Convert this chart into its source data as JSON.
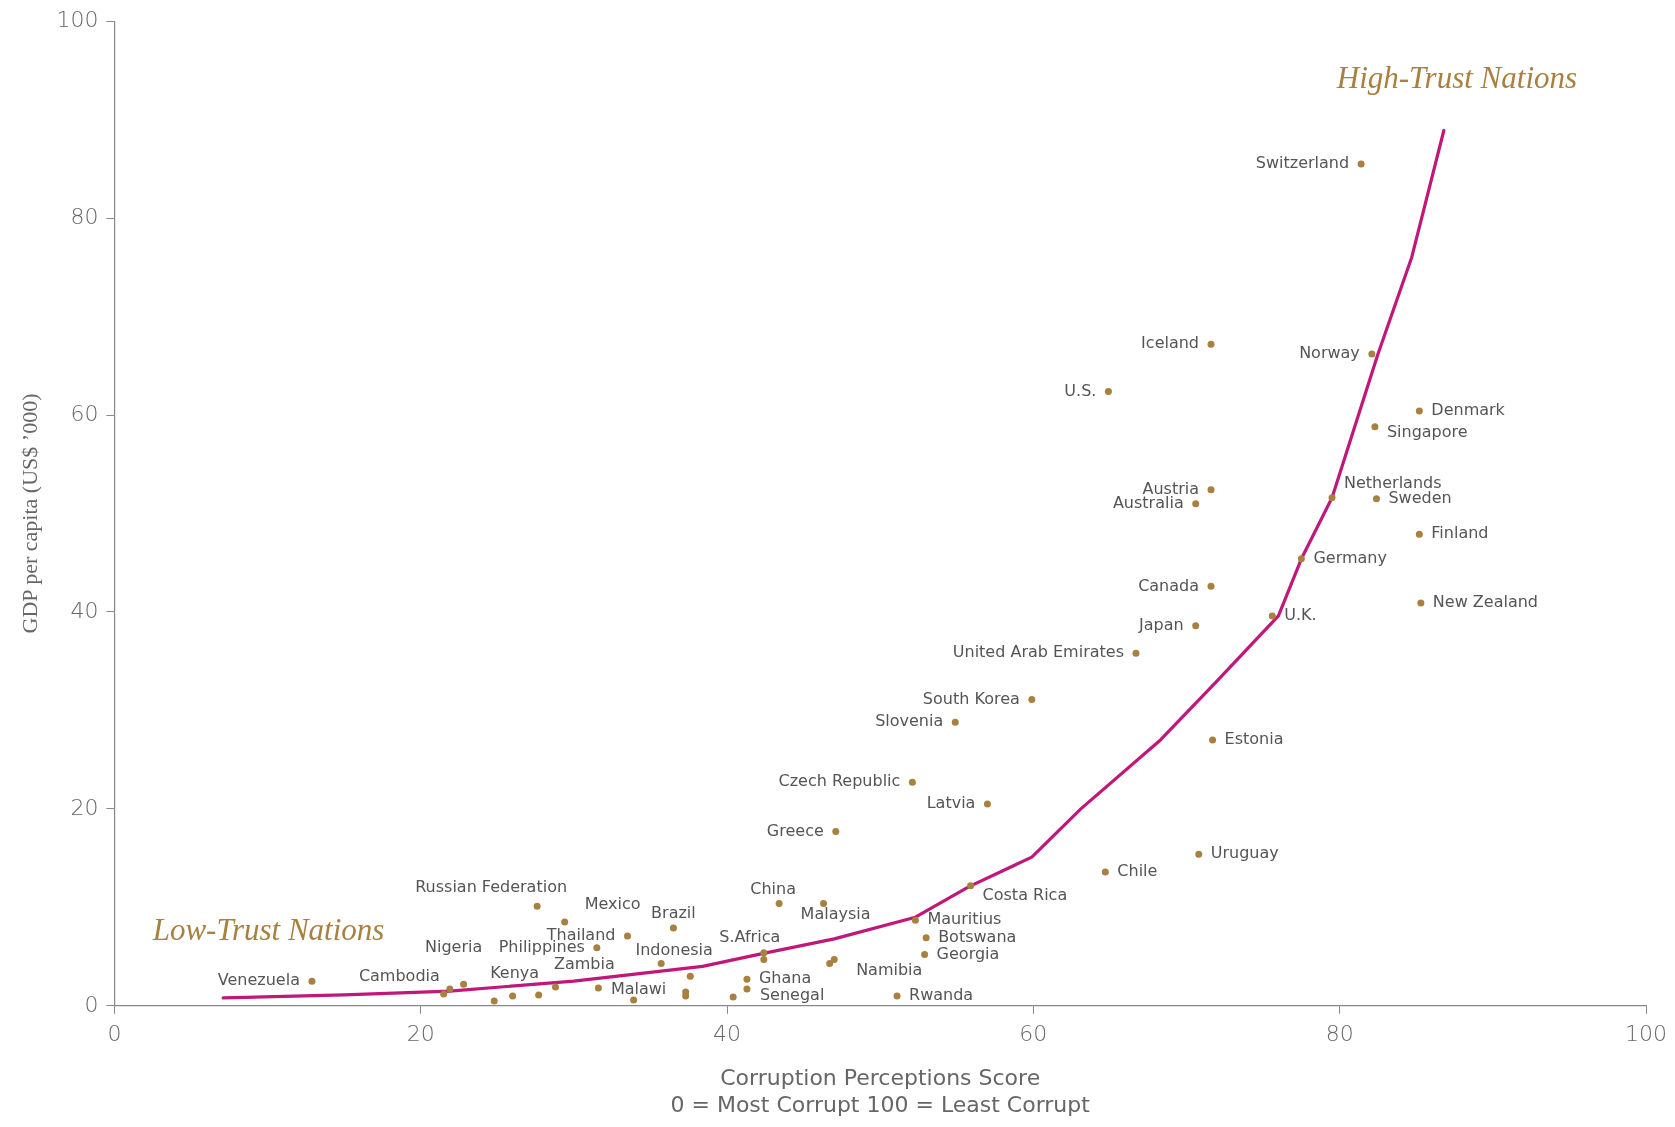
{
  "chart_data": {
    "type": "scatter",
    "xlabel": "Corruption Perceptions Score\n0 = Most Corrupt 100 = Least Corrupt",
    "ylabel": "GDP per capita (US$ ’000)",
    "xlim": [
      0,
      100
    ],
    "ylim": [
      0,
      100
    ],
    "xticks": [
      0,
      20,
      40,
      60,
      80,
      100
    ],
    "yticks": [
      0,
      20,
      40,
      60,
      80,
      100
    ],
    "marker": "circle",
    "series": [
      {
        "color": "#a8803f",
        "x": [
          81.4,
          71.6,
          82.1,
          64.9,
          85.2,
          82.3,
          71.6,
          70.6,
          79.5,
          82.4,
          85.2,
          77.5,
          71.6,
          85.3,
          75.6,
          70.6,
          66.7,
          59.9,
          54.9,
          71.7,
          52.1,
          57.0,
          47.1,
          70.8,
          64.7,
          55.9,
          43.4,
          46.3,
          27.6,
          29.4,
          52.3,
          36.5,
          33.5,
          53.0,
          31.5,
          42.4,
          52.9,
          47.0,
          35.7,
          31.6,
          41.3,
          41.3,
          51.1,
          33.9,
          12.9,
          21.9,
          22.8,
          26.0,
          46.7,
          42.4,
          37.6,
          37.3,
          37.3,
          40.4,
          21.5,
          24.8,
          27.7,
          28.8
        ],
        "values": [
          85.5,
          67.2,
          66.2,
          62.4,
          60.4,
          58.8,
          52.4,
          51.0,
          51.6,
          51.5,
          47.9,
          45.4,
          42.6,
          40.9,
          39.6,
          38.6,
          35.8,
          31.1,
          28.8,
          27.0,
          22.7,
          20.5,
          17.7,
          15.4,
          13.6,
          12.2,
          10.4,
          10.4,
          10.1,
          8.5,
          8.7,
          7.9,
          7.1,
          6.9,
          5.9,
          5.4,
          5.2,
          4.7,
          4.3,
          1.8,
          2.7,
          1.7,
          1.0,
          0.6,
          2.5,
          1.7,
          2.2,
          1.0,
          4.3,
          4.7,
          3.0,
          1.4,
          1.0,
          0.9,
          1.2,
          0.5,
          1.1,
          1.9
        ]
      },
      {
        "type": "line",
        "color": "#c0187a",
        "marker": "none",
        "line_style": "solid",
        "x": [
          7.1,
          15,
          21.9,
          30,
          38.4,
          42.3,
          47,
          52.3,
          55.8,
          59.9,
          63.1,
          68.3,
          72,
          76,
          77.5,
          79.5,
          82.5,
          84.7,
          86.8
        ],
        "values": [
          0.8,
          1.1,
          1.5,
          2.5,
          4.0,
          5.3,
          6.8,
          9.0,
          12.1,
          15.1,
          20,
          27,
          33,
          39.6,
          45.4,
          51.6,
          66.2,
          76,
          88.9
        ]
      }
    ],
    "annotations": [
      "High-Trust Nations",
      "Low-Trust Nations",
      {
        "text": "Switzerland",
        "x": 81.4,
        "y": 85.5
      },
      {
        "text": "Iceland",
        "x": 71.6,
        "y": 67.2
      },
      {
        "text": "Norway",
        "x": 82.1,
        "y": 66.2
      },
      {
        "text": "U.S.",
        "x": 64.9,
        "y": 62.4
      },
      {
        "text": "Denmark",
        "x": 85.2,
        "y": 60.4
      },
      {
        "text": "Singapore",
        "x": 82.3,
        "y": 58.8
      },
      {
        "text": "Austria",
        "x": 71.6,
        "y": 52.4
      },
      {
        "text": "Australia",
        "x": 70.6,
        "y": 51.0
      },
      {
        "text": "Netherlands",
        "x": 79.5,
        "y": 51.6
      },
      {
        "text": "Sweden",
        "x": 82.4,
        "y": 51.5
      },
      {
        "text": "Finland",
        "x": 85.2,
        "y": 47.9
      },
      {
        "text": "Germany",
        "x": 77.5,
        "y": 45.4
      },
      {
        "text": "Canada",
        "x": 71.6,
        "y": 42.6
      },
      {
        "text": "New Zealand",
        "x": 85.3,
        "y": 40.9
      },
      {
        "text": "U.K.",
        "x": 75.6,
        "y": 39.6
      },
      {
        "text": "Japan",
        "x": 70.6,
        "y": 38.6
      },
      {
        "text": "United Arab Emirates",
        "x": 66.7,
        "y": 35.8
      },
      {
        "text": "South Korea",
        "x": 59.9,
        "y": 31.1
      },
      {
        "text": "Slovenia",
        "x": 54.9,
        "y": 28.8
      },
      {
        "text": "Estonia",
        "x": 71.7,
        "y": 27.0
      },
      {
        "text": "Czech Republic",
        "x": 52.1,
        "y": 22.7
      },
      {
        "text": "Latvia",
        "x": 57.0,
        "y": 20.5
      },
      {
        "text": "Greece",
        "x": 47.1,
        "y": 17.7
      },
      {
        "text": "Uruguay",
        "x": 70.8,
        "y": 15.4
      },
      {
        "text": "Chile",
        "x": 64.7,
        "y": 13.6
      },
      {
        "text": "Costa Rica",
        "x": 55.9,
        "y": 12.2
      },
      {
        "text": "China",
        "x": 43.4,
        "y": 10.4
      },
      {
        "text": "Malaysia",
        "x": 46.3,
        "y": 10.4
      },
      {
        "text": "Russian Federation",
        "x": 27.6,
        "y": 10.1
      },
      {
        "text": "Mexico",
        "x": 29.4,
        "y": 8.5
      },
      {
        "text": "Mauritius",
        "x": 52.3,
        "y": 8.7
      },
      {
        "text": "Brazil",
        "x": 36.5,
        "y": 7.9
      },
      {
        "text": "Thailand",
        "x": 33.5,
        "y": 7.1
      },
      {
        "text": "Botswana",
        "x": 53.0,
        "y": 6.9
      },
      {
        "text": "Philippines",
        "x": 31.5,
        "y": 5.9
      },
      {
        "text": "S.Africa",
        "x": 42.4,
        "y": 5.4
      },
      {
        "text": "Georgia",
        "x": 52.9,
        "y": 5.2
      },
      {
        "text": "Namibia",
        "x": 47.0,
        "y": 4.7
      },
      {
        "text": "Indonesia",
        "x": 35.7,
        "y": 4.3
      },
      {
        "text": "Zambia",
        "x": 31.6,
        "y": 1.8
      },
      {
        "text": "Ghana",
        "x": 41.3,
        "y": 2.7
      },
      {
        "text": "Senegal",
        "x": 41.3,
        "y": 1.7
      },
      {
        "text": "Rwanda",
        "x": 51.1,
        "y": 1.0
      },
      {
        "text": "Malawi",
        "x": 33.9,
        "y": 0.6
      },
      {
        "text": "Venezuela",
        "x": 12.9,
        "y": 2.5
      },
      {
        "text": "Cambodia",
        "x": 21.9,
        "y": 1.7
      },
      {
        "text": "Nigeria",
        "x": 22.8,
        "y": 2.2
      },
      {
        "text": "Kenya",
        "x": 26.0,
        "y": 1.0
      }
    ]
  }
}
